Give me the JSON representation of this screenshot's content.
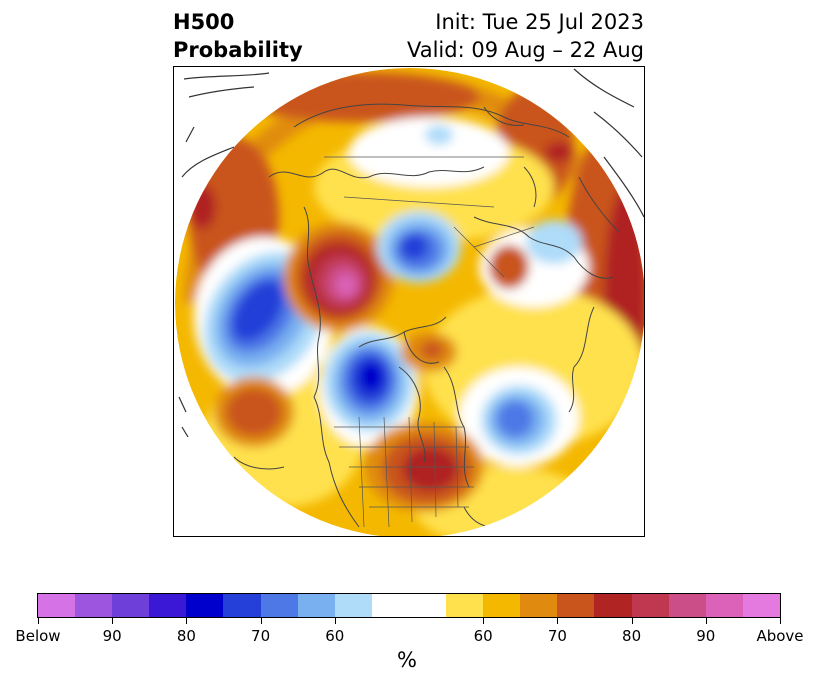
{
  "header": {
    "product": "H500",
    "subtitle": "Probability",
    "init": "Init: Tue 25 Jul 2023",
    "valid": "Valid: 09 Aug – 22 Aug"
  },
  "map": {
    "projection": "north-polar-stereographic",
    "features": [
      "continents",
      "country-borders",
      "us-state-borders"
    ],
    "anomaly_centers": [
      {
        "region": "Gulf of Alaska",
        "sign": "below",
        "peak_percent": 80
      },
      {
        "region": "Western Canada",
        "sign": "above",
        "peak_percent": 90
      },
      {
        "region": "Arctic Ocean / Siberian shelf",
        "sign": "below",
        "peak_percent": 80
      },
      {
        "region": "Hudson Bay",
        "sign": "below",
        "peak_percent": 80
      },
      {
        "region": "Central North Atlantic",
        "sign": "below",
        "peak_percent": 70
      },
      {
        "region": "South-Central United States",
        "sign": "above",
        "peak_percent": 80
      },
      {
        "region": "East-Central Pacific",
        "sign": "above",
        "peak_percent": 70
      },
      {
        "region": "Western Europe / Atlantic margin",
        "sign": "above",
        "peak_percent": 80
      },
      {
        "region": "Greenland",
        "sign": "above",
        "peak_percent": 70
      }
    ]
  },
  "colorbar": {
    "unit": "%",
    "colors": [
      "#d573e6",
      "#9d55e0",
      "#6e3fd9",
      "#3a18d6",
      "#0000cc",
      "#2440d8",
      "#4d78e6",
      "#79b0f0",
      "#aedcf9",
      "#ffffff",
      "#ffe14d",
      "#f4b800",
      "#e08b10",
      "#c9541c",
      "#b02424",
      "#c03750",
      "#cc4e88",
      "#db62b8",
      "#e47ae0"
    ],
    "tick_labels": [
      "Below",
      "90",
      "80",
      "70",
      "60",
      "60",
      "70",
      "80",
      "90",
      "Above"
    ],
    "tick_segment_positions": [
      0,
      2,
      4,
      6,
      8,
      12,
      14,
      16,
      18,
      20
    ]
  }
}
